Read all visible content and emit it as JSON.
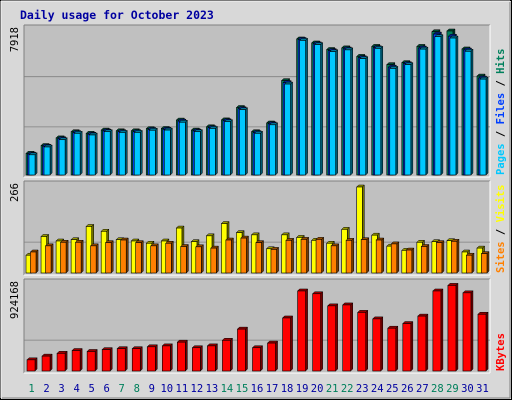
{
  "chart_data": {
    "type": "bar",
    "title": "Daily usage for October 2023",
    "colors": {
      "hits": "#00805c",
      "files": "#0040ff",
      "pages": "#00c8ff",
      "visits": "#ffff00",
      "sites": "#ff8000",
      "kbytes": "#ff0000",
      "weekend": "#00805c",
      "weekday": "#0000a0"
    },
    "categories": [
      "1",
      "2",
      "3",
      "4",
      "5",
      "6",
      "7",
      "8",
      "9",
      "10",
      "11",
      "12",
      "13",
      "14",
      "15",
      "16",
      "17",
      "18",
      "19",
      "20",
      "21",
      "22",
      "23",
      "24",
      "25",
      "26",
      "27",
      "28",
      "29",
      "30",
      "31"
    ],
    "weekend_days": [
      "1",
      "7",
      "8",
      "14",
      "15",
      "21",
      "22",
      "28",
      "29"
    ],
    "panels": [
      {
        "id": "requests",
        "max_label": "7918",
        "ylim": [
          0,
          7918
        ],
        "series": [
          {
            "name": "Hits",
            "values": [
              1190,
              1620,
              2040,
              2380,
              2290,
              2470,
              2430,
              2430,
              2550,
              2560,
              3020,
              2470,
              2650,
              3030,
              3710,
              2380,
              2860,
              5190,
              7480,
              7260,
              6900,
              6990,
              6520,
              7070,
              6070,
              6180,
              7070,
              7880,
              7918,
              6930,
              5440
            ]
          },
          {
            "name": "Files",
            "values": [
              1150,
              1580,
              1990,
              2330,
              2240,
              2420,
              2380,
              2380,
              2500,
              2510,
              2960,
              2420,
              2600,
              2980,
              3640,
              2330,
              2810,
              5080,
              7450,
              7210,
              6840,
              6930,
              6450,
              7000,
              5930,
              6120,
              6980,
              7750,
              7630,
              6870,
              5330
            ]
          },
          {
            "name": "Pages",
            "values": [
              1110,
              1540,
              1940,
              2290,
              2200,
              2380,
              2340,
              2340,
              2460,
              2470,
              2900,
              2380,
              2560,
              2930,
              3590,
              2290,
              2760,
              5000,
              7400,
              7170,
              6780,
              6880,
              6400,
              6960,
              5860,
              6070,
              6920,
              7610,
              7530,
              6800,
              5270
            ]
          }
        ],
        "legend": [
          "Pages",
          "Files",
          "Hits"
        ]
      },
      {
        "id": "visitors",
        "max_label": "266",
        "ylim": [
          0,
          266
        ],
        "series": [
          {
            "name": "Visits",
            "values": [
              55,
              113,
              99,
              103,
              144,
              129,
              103,
              99,
              92,
              99,
              139,
              97,
              115,
              153,
              125,
              118,
              75,
              118,
              110,
              101,
              92,
              135,
              266,
              117,
              83,
              70,
              95,
              97,
              100,
              65,
              77
            ]
          },
          {
            "name": "Sites",
            "values": [
              65,
              84,
              95,
              95,
              84,
              94,
              102,
              94,
              84,
              92,
              82,
              81,
              77,
              102,
              108,
              94,
              73,
              101,
              104,
              104,
              84,
              101,
              103,
              102,
              90,
              71,
              82,
              94,
              98,
              55,
              60
            ]
          }
        ],
        "legend": [
          "Sites",
          "Visits"
        ]
      },
      {
        "id": "bytes",
        "max_label": "924168",
        "ylim": [
          0,
          924168
        ],
        "series": [
          {
            "name": "KBytes",
            "values": [
              120000,
              160000,
              190000,
              220000,
              210000,
              230000,
              240000,
              240000,
              260000,
              270000,
              310000,
              250000,
              270000,
              330000,
              450000,
              250000,
              300000,
              570000,
              860000,
              830000,
              700000,
              710000,
              630000,
              560000,
              460000,
              510000,
              590000,
              860000,
              920000,
              840000,
              610000
            ]
          }
        ],
        "legend": [
          "KBytes"
        ]
      }
    ]
  }
}
